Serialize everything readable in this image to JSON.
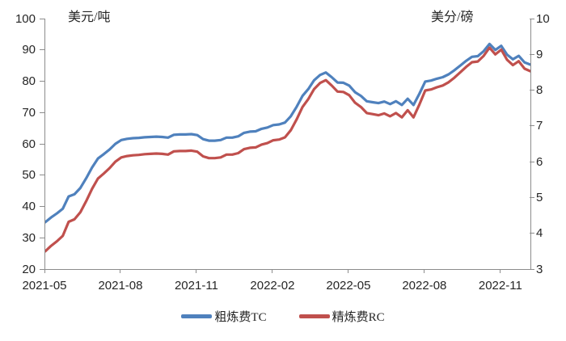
{
  "header": {
    "left_unit": "美元/吨",
    "right_unit": "美分/磅"
  },
  "legend": {
    "items": [
      {
        "label": "粗炼费TC",
        "color": "#4F81BD"
      },
      {
        "label": "精炼费RC",
        "color": "#C0504D"
      }
    ]
  },
  "colors": {
    "tc_blue": "#4F81BD",
    "rc_red": "#C0504D",
    "axis": "#8C8C8C",
    "text": "#262626",
    "background": "#FFFFFF"
  },
  "chart_data": {
    "type": "line",
    "title": "",
    "grid": false,
    "legend_position": "bottom-center",
    "left_axis": {
      "label": "美元/吨",
      "min": 20,
      "max": 100,
      "ticks": [
        100,
        90,
        80,
        70,
        60,
        50,
        40,
        30,
        20
      ]
    },
    "right_axis": {
      "label": "美分/磅",
      "min": 3,
      "max": 10,
      "ticks": [
        10,
        9,
        8,
        7,
        6,
        5,
        4,
        3
      ]
    },
    "x_axis": {
      "tick_labels": [
        "2021-05",
        "2021-08",
        "2021-11",
        "2022-02",
        "2022-05",
        "2022-08",
        "2022-11"
      ],
      "tick_weeks": [
        0,
        13,
        26,
        39,
        52,
        65,
        78
      ],
      "total_weeks": 83,
      "frequency": "weekly"
    },
    "series": [
      {
        "name": "粗炼费TC",
        "axis": "left",
        "unit": "美元/吨",
        "color": "#4F81BD",
        "values": [
          35.0,
          36.5,
          37.8,
          39.3,
          43.2,
          43.9,
          45.9,
          49.0,
          52.4,
          55.3,
          56.7,
          58.2,
          60.0,
          61.2,
          61.6,
          61.8,
          61.9,
          62.1,
          62.2,
          62.3,
          62.2,
          62.0,
          62.9,
          63.0,
          63.0,
          63.1,
          62.8,
          61.5,
          61.0,
          61.0,
          61.2,
          62.0,
          62.0,
          62.4,
          63.5,
          63.9,
          64.0,
          64.8,
          65.2,
          66.0,
          66.2,
          66.8,
          68.8,
          71.8,
          75.3,
          77.5,
          80.3,
          82.0,
          82.8,
          81.3,
          79.6,
          79.5,
          78.6,
          76.5,
          75.3,
          73.6,
          73.3,
          73.0,
          73.5,
          72.7,
          73.6,
          72.4,
          74.4,
          72.4,
          76.0,
          79.9,
          80.2,
          80.8,
          81.3,
          82.2,
          83.5,
          85.0,
          86.5,
          87.8,
          88.0,
          89.6,
          91.9,
          90.0,
          91.3,
          88.5,
          87.0,
          88.1,
          86.0,
          85.3
        ]
      },
      {
        "name": "精炼费RC",
        "axis": "right",
        "unit": "美分/磅",
        "color": "#C0504D",
        "values": [
          3.5,
          3.65,
          3.78,
          3.93,
          4.32,
          4.39,
          4.59,
          4.9,
          5.24,
          5.53,
          5.67,
          5.82,
          6.0,
          6.12,
          6.16,
          6.18,
          6.19,
          6.21,
          6.22,
          6.23,
          6.22,
          6.2,
          6.29,
          6.3,
          6.3,
          6.31,
          6.28,
          6.15,
          6.1,
          6.1,
          6.12,
          6.2,
          6.2,
          6.24,
          6.35,
          6.39,
          6.4,
          6.48,
          6.52,
          6.6,
          6.62,
          6.68,
          6.88,
          7.18,
          7.53,
          7.75,
          8.03,
          8.2,
          8.28,
          8.13,
          7.96,
          7.95,
          7.86,
          7.65,
          7.53,
          7.36,
          7.33,
          7.3,
          7.35,
          7.27,
          7.36,
          7.24,
          7.44,
          7.24,
          7.6,
          7.99,
          8.02,
          8.08,
          8.13,
          8.22,
          8.35,
          8.5,
          8.65,
          8.78,
          8.8,
          8.96,
          9.19,
          9.0,
          9.13,
          8.85,
          8.7,
          8.81,
          8.6,
          8.53
        ]
      }
    ]
  }
}
